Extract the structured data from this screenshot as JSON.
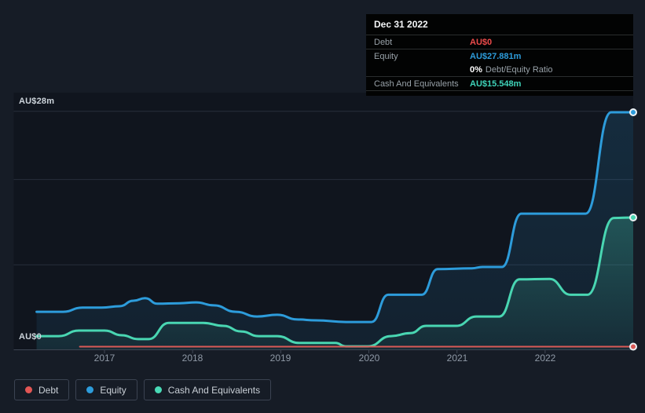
{
  "tooltip": {
    "date": "Dec 31 2022",
    "debt_label": "Debt",
    "debt_value": "AU$0",
    "equity_label": "Equity",
    "equity_value": "AU$27.881m",
    "ratio_value": "0%",
    "ratio_text": "Debt/Equity Ratio",
    "cash_label": "Cash And Equivalents",
    "cash_value": "AU$15.548m"
  },
  "y_axis": {
    "top_label": "AU$28m",
    "zero_label": "AU$0"
  },
  "x_axis": {
    "ticks": [
      "2017",
      "2018",
      "2019",
      "2020",
      "2021",
      "2022"
    ]
  },
  "legend": {
    "items": [
      {
        "label": "Debt",
        "color": "#e25654"
      },
      {
        "label": "Equity",
        "color": "#2d9cdb"
      },
      {
        "label": "Cash And Equivalents",
        "color": "#49dab6"
      }
    ]
  },
  "colors": {
    "page_bg": "#161c26",
    "plot_bg": "#10151e",
    "gridline": "#272e3b",
    "axis": "#3e4553",
    "debt": "#d95a57",
    "equity": "#2d9cdb",
    "cash": "#49d6b2"
  },
  "chart_data": {
    "type": "area",
    "title": "Debt to Equity History (hover: Dec 31 2022)",
    "currency": "AU$",
    "y_unit": "millions",
    "ylim": [
      0,
      28
    ],
    "x_range": [
      2016.23,
      2023.0
    ],
    "y_top_gridline_label": "AU$28m",
    "gridline_values_m": [
      28,
      20,
      10
    ],
    "x_tick_years": [
      2017,
      2018,
      2019,
      2020,
      2021,
      2022
    ],
    "series": [
      {
        "name": "Debt",
        "color": "#d95a57",
        "filled": false,
        "final_value_label": "AU$0",
        "points": [
          [
            2016.72,
            0
          ],
          [
            2023.0,
            0
          ]
        ]
      },
      {
        "name": "Equity",
        "color": "#2d9cdb",
        "filled": true,
        "final_value_label": "AU$27.881m",
        "points": [
          [
            2016.23,
            4.5
          ],
          [
            2016.53,
            4.5
          ],
          [
            2016.75,
            5.0
          ],
          [
            2016.97,
            5.0
          ],
          [
            2017.17,
            5.15
          ],
          [
            2017.33,
            5.8
          ],
          [
            2017.46,
            6.1
          ],
          [
            2017.6,
            5.45
          ],
          [
            2017.85,
            5.5
          ],
          [
            2018.04,
            5.6
          ],
          [
            2018.24,
            5.25
          ],
          [
            2018.49,
            4.5
          ],
          [
            2018.73,
            3.95
          ],
          [
            2018.96,
            4.15
          ],
          [
            2019.19,
            3.6
          ],
          [
            2019.4,
            3.5
          ],
          [
            2019.74,
            3.3
          ],
          [
            2020.03,
            3.3
          ],
          [
            2020.22,
            6.5
          ],
          [
            2020.6,
            6.5
          ],
          [
            2020.78,
            9.5
          ],
          [
            2021.17,
            9.6
          ],
          [
            2021.29,
            9.75
          ],
          [
            2021.51,
            9.75
          ],
          [
            2021.73,
            16.0
          ],
          [
            2022.46,
            16.0
          ],
          [
            2022.75,
            27.88
          ],
          [
            2023.0,
            27.881
          ]
        ]
      },
      {
        "name": "Cash And Equivalents",
        "color": "#49d6b2",
        "filled": true,
        "final_value_label": "AU$15.548m",
        "points": [
          [
            2016.23,
            1.65
          ],
          [
            2016.48,
            1.65
          ],
          [
            2016.71,
            2.3
          ],
          [
            2017.0,
            2.3
          ],
          [
            2017.2,
            1.75
          ],
          [
            2017.38,
            1.3
          ],
          [
            2017.5,
            1.3
          ],
          [
            2017.73,
            3.2
          ],
          [
            2018.12,
            3.2
          ],
          [
            2018.35,
            2.85
          ],
          [
            2018.55,
            2.2
          ],
          [
            2018.75,
            1.65
          ],
          [
            2018.96,
            1.65
          ],
          [
            2019.21,
            0.85
          ],
          [
            2019.62,
            0.85
          ],
          [
            2019.74,
            0.45
          ],
          [
            2019.99,
            0.45
          ],
          [
            2020.25,
            1.65
          ],
          [
            2020.47,
            2.0
          ],
          [
            2020.65,
            2.85
          ],
          [
            2020.99,
            2.85
          ],
          [
            2021.22,
            3.95
          ],
          [
            2021.48,
            3.95
          ],
          [
            2021.71,
            8.3
          ],
          [
            2022.05,
            8.35
          ],
          [
            2022.29,
            6.5
          ],
          [
            2022.48,
            6.5
          ],
          [
            2022.78,
            15.5
          ],
          [
            2023.0,
            15.548
          ]
        ]
      }
    ]
  }
}
